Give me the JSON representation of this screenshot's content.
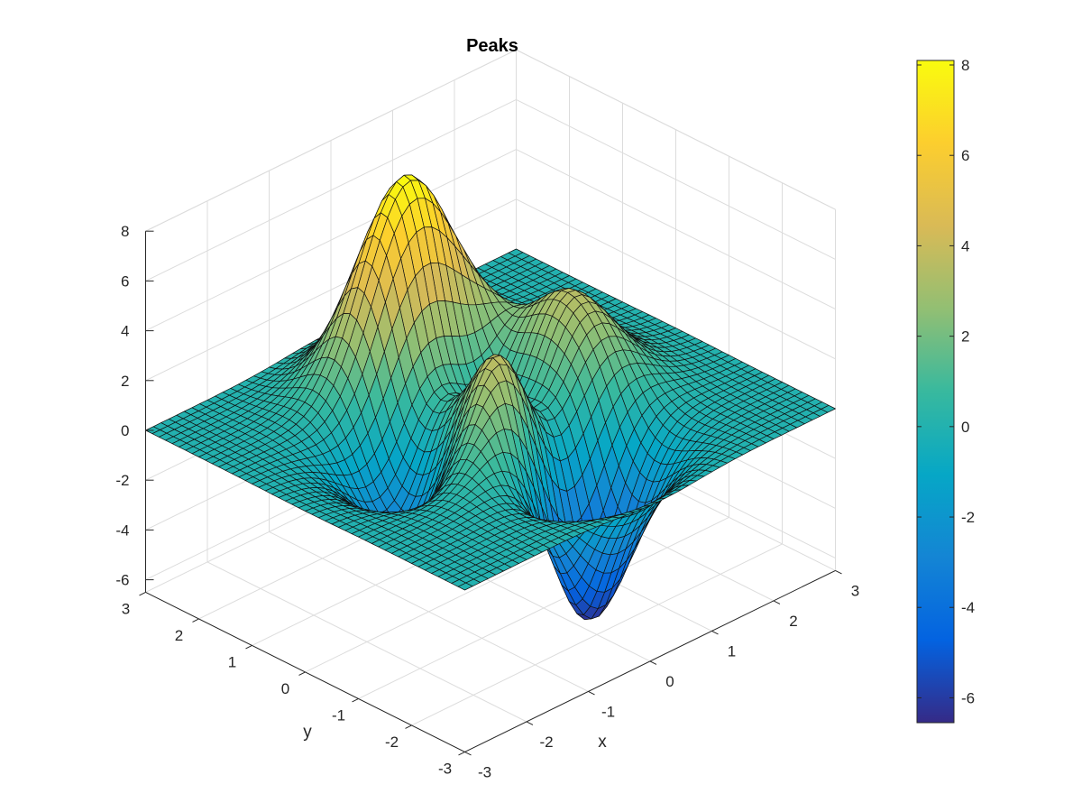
{
  "chart_data": {
    "type": "surface",
    "title": "Peaks",
    "function": "3*(1-x)^2*exp(-x^2-(y+1)^2) - 10*(x/5-x^3-y^5)*exp(-x^2-y^2) - 1/3*exp(-(x+1)^2-y^2)",
    "grid_size": 49,
    "xlabel": "x",
    "ylabel": "y",
    "zlabel": "",
    "xlim": [
      -3,
      3
    ],
    "ylim": [
      -3,
      3
    ],
    "zlim": [
      -6.5,
      8
    ],
    "xticks": [
      "-3",
      "-2",
      "-1",
      "0",
      "1",
      "2",
      "3"
    ],
    "yticks": [
      "-3",
      "-2",
      "-1",
      "0",
      "1",
      "2",
      "3"
    ],
    "zticks": [
      "-6",
      "-4",
      "-2",
      "0",
      "2",
      "4",
      "6",
      "8"
    ],
    "grid": true,
    "colormap": "parula",
    "colormap_stops": [
      "#352a87",
      "#0363e1",
      "#1485d4",
      "#06a7c6",
      "#38b99e",
      "#92bf73",
      "#d9ba56",
      "#fcce2e",
      "#f9fb0e"
    ],
    "colorbar": {
      "location": "right",
      "range": [
        -6.55,
        8.1
      ],
      "ticks": [
        "-6",
        "-4",
        "-2",
        "0",
        "2",
        "4",
        "6",
        "8"
      ]
    }
  }
}
